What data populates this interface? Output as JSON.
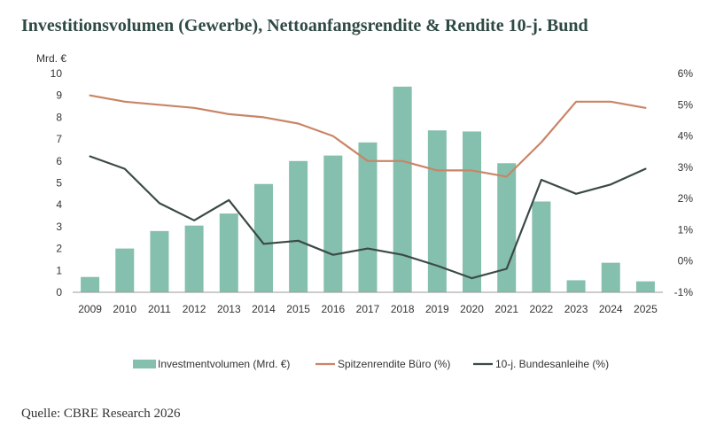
{
  "page": {
    "title": "Investitionsvolumen (Gewerbe), Nettoanfangsrendite & Rendite 10-j. Bund",
    "source": "Quelle: CBRE Research 2026"
  },
  "chart_data": {
    "type": "bar",
    "title": "Investitionsvolumen (Gewerbe), Nettoanfangsrendite & Rendite 10-j. Bund",
    "categories": [
      "2009",
      "2010",
      "2011",
      "2012",
      "2013",
      "2014",
      "2015",
      "2016",
      "2017",
      "2018",
      "2019",
      "2020",
      "2021",
      "2022",
      "2023",
      "2024",
      "2025"
    ],
    "left_axis": {
      "unit_label": "Mrd. €",
      "min": 0,
      "max": 10,
      "ticks": [
        "0",
        "1",
        "2",
        "3",
        "4",
        "5",
        "6",
        "7",
        "8",
        "9",
        "10"
      ]
    },
    "right_axis": {
      "min": -1,
      "max": 6,
      "ticks": [
        "-1%",
        "0%",
        "1%",
        "2%",
        "3%",
        "4%",
        "5%",
        "6%"
      ]
    },
    "grid": false,
    "legend_position": "bottom",
    "series": [
      {
        "name": "Investmentvolumen (Mrd. €)",
        "kind": "bar",
        "axis": "left",
        "color": "#85bfae",
        "values": [
          0.7,
          2.0,
          2.8,
          3.05,
          3.6,
          4.95,
          6.0,
          6.25,
          6.85,
          9.4,
          7.4,
          7.35,
          5.9,
          4.15,
          0.55,
          1.35,
          0.5
        ]
      },
      {
        "name": "Spitzenrendite Büro (%)",
        "kind": "line",
        "axis": "right",
        "color": "#c98566",
        "values": [
          5.3,
          5.1,
          5.0,
          4.9,
          4.7,
          4.6,
          4.4,
          4.0,
          3.2,
          3.2,
          2.9,
          2.9,
          2.7,
          3.8,
          5.1,
          5.1,
          4.9
        ]
      },
      {
        "name": "10-j. Bundesanleihe (%)",
        "kind": "line",
        "axis": "right",
        "color": "#3b4a46",
        "values": [
          3.35,
          2.95,
          1.85,
          1.3,
          1.95,
          0.55,
          0.65,
          0.2,
          0.4,
          0.2,
          -0.15,
          -0.55,
          -0.25,
          2.6,
          2.15,
          2.45,
          2.95
        ]
      }
    ]
  }
}
